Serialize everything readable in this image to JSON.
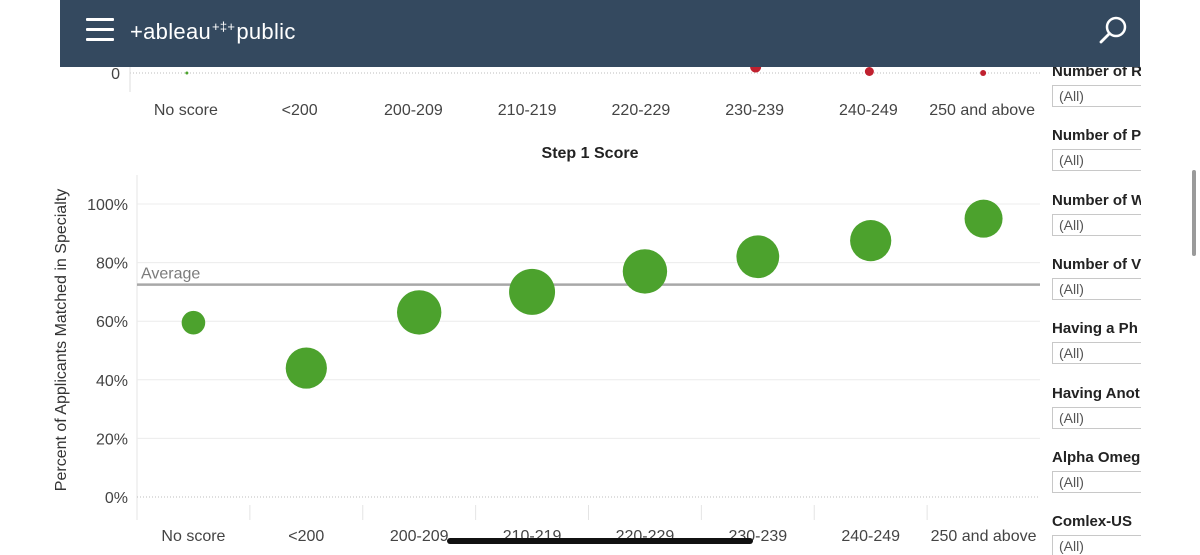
{
  "header": {
    "logo_text_left": "+ableau",
    "logo_spark": "+‡+",
    "logo_text_right": "public"
  },
  "colors": {
    "header_bg": "#34495f",
    "match_dot": "#4ca22d",
    "unmatched_dot": "#c0212f",
    "average_line": "#a8a8a8"
  },
  "chart_data": [
    {
      "type": "scatter",
      "partial": true,
      "categories": [
        "No score",
        "<200",
        "200-209",
        "210-219",
        "220-229",
        "230-239",
        "240-249",
        "250 and above"
      ],
      "y_tick_labels": [
        "0"
      ],
      "xlabel": "Step 1 Score",
      "visible_points": [
        {
          "category": "No score",
          "y": 0,
          "color": "#4ca22d"
        },
        {
          "category": "230-239",
          "y": 0.6,
          "color": "#c0212f"
        },
        {
          "category": "240-249",
          "y": 0.15,
          "color": "#c0212f"
        },
        {
          "category": "250 and above",
          "y": 0,
          "color": "#c0212f"
        }
      ]
    },
    {
      "type": "scatter",
      "categories": [
        "No score",
        "<200",
        "200-209",
        "210-219",
        "220-229",
        "230-239",
        "240-249",
        "250 and above"
      ],
      "values": [
        59.5,
        44,
        63,
        70,
        77,
        82,
        87.5,
        95
      ],
      "relative_size": [
        0.3,
        0.85,
        0.95,
        1.0,
        0.95,
        0.9,
        0.85,
        0.75
      ],
      "ylabel": "Percent of Applicants Matched in Specialty",
      "ylim": [
        -3,
        110
      ],
      "y_ticks": [
        0,
        20,
        40,
        60,
        80,
        100
      ],
      "y_tick_labels": [
        "0%",
        "20%",
        "40%",
        "60%",
        "80%",
        "100%"
      ],
      "average": {
        "label": "Average",
        "value": 72.5
      },
      "grid": true
    }
  ],
  "filters": [
    {
      "title": "Number of R",
      "value": "(All)"
    },
    {
      "title": "Number of P",
      "value": "(All)"
    },
    {
      "title": "Number of W",
      "value": "(All)"
    },
    {
      "title": "Number of V",
      "value": "(All)"
    },
    {
      "title": "Having a Ph",
      "value": "(All)"
    },
    {
      "title": "Having Anot",
      "value": "(All)"
    },
    {
      "title": "Alpha Omeg",
      "value": "(All)"
    },
    {
      "title": "Comlex-US",
      "value": "(All)"
    }
  ]
}
